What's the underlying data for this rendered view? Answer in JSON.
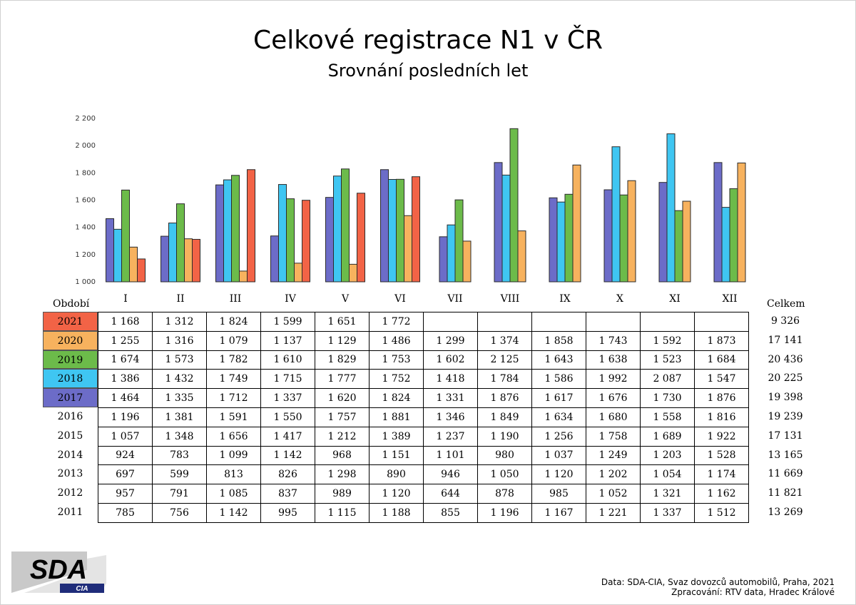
{
  "title": "Celkové registrace N1 v ČR",
  "subtitle": "Srovnání posledních let",
  "labels": {
    "period": "Období",
    "total": "Celkem"
  },
  "footer": {
    "line1": "Data: SDA-CIA, Svaz dovozců automobilů, Praha, 2021",
    "line2": "Zpracování: RTV data, Hradec Králové"
  },
  "logo": {
    "text": "SDA",
    "subtext": "CIA"
  },
  "chart_data": {
    "type": "bar",
    "categories": [
      "I",
      "II",
      "III",
      "IV",
      "V",
      "VI",
      "VII",
      "VIII",
      "IX",
      "X",
      "XI",
      "XII"
    ],
    "ylim": [
      1000,
      2200
    ],
    "yticks": [
      "1 000",
      "1 200",
      "1 400",
      "1 600",
      "1 800",
      "2 000",
      "2 200"
    ],
    "series": [
      {
        "name": "2017",
        "color": "#6c6cc8",
        "values": [
          1464,
          1335,
          1712,
          1337,
          1620,
          1824,
          1331,
          1876,
          1617,
          1676,
          1730,
          1876
        ]
      },
      {
        "name": "2018",
        "color": "#3fc6f2",
        "values": [
          1386,
          1432,
          1749,
          1715,
          1777,
          1752,
          1418,
          1784,
          1586,
          1992,
          2087,
          1547
        ]
      },
      {
        "name": "2019",
        "color": "#6cbb4a",
        "values": [
          1674,
          1573,
          1782,
          1610,
          1829,
          1753,
          1602,
          2125,
          1643,
          1638,
          1523,
          1684
        ]
      },
      {
        "name": "2020",
        "color": "#f7b25e",
        "values": [
          1255,
          1316,
          1079,
          1137,
          1129,
          1486,
          1299,
          1374,
          1858,
          1743,
          1592,
          1873
        ]
      },
      {
        "name": "2021",
        "color": "#f26346",
        "values": [
          1168,
          1312,
          1824,
          1599,
          1651,
          1772,
          null,
          null,
          null,
          null,
          null,
          null
        ]
      }
    ]
  },
  "table": {
    "rows": [
      {
        "year": "2021",
        "color": "#f26346",
        "values": [
          "1 168",
          "1 312",
          "1 824",
          "1 599",
          "1 651",
          "1 772",
          "",
          "",
          "",
          "",
          "",
          ""
        ],
        "total": "9 326"
      },
      {
        "year": "2020",
        "color": "#f7b25e",
        "values": [
          "1 255",
          "1 316",
          "1 079",
          "1 137",
          "1 129",
          "1 486",
          "1 299",
          "1 374",
          "1 858",
          "1 743",
          "1 592",
          "1 873"
        ],
        "total": "17 141"
      },
      {
        "year": "2019",
        "color": "#6cbb4a",
        "values": [
          "1 674",
          "1 573",
          "1 782",
          "1 610",
          "1 829",
          "1 753",
          "1 602",
          "2 125",
          "1 643",
          "1 638",
          "1 523",
          "1 684"
        ],
        "total": "20 436"
      },
      {
        "year": "2018",
        "color": "#3fc6f2",
        "values": [
          "1 386",
          "1 432",
          "1 749",
          "1 715",
          "1 777",
          "1 752",
          "1 418",
          "1 784",
          "1 586",
          "1 992",
          "2 087",
          "1 547"
        ],
        "total": "20 225"
      },
      {
        "year": "2017",
        "color": "#6c6cc8",
        "values": [
          "1 464",
          "1 335",
          "1 712",
          "1 337",
          "1 620",
          "1 824",
          "1 331",
          "1 876",
          "1 617",
          "1 676",
          "1 730",
          "1 876"
        ],
        "total": "19 398"
      },
      {
        "year": "2016",
        "color": "",
        "values": [
          "1 196",
          "1 381",
          "1 591",
          "1 550",
          "1 757",
          "1 881",
          "1 346",
          "1 849",
          "1 634",
          "1 680",
          "1 558",
          "1 816"
        ],
        "total": "19 239"
      },
      {
        "year": "2015",
        "color": "",
        "values": [
          "1 057",
          "1 348",
          "1 656",
          "1 417",
          "1 212",
          "1 389",
          "1 237",
          "1 190",
          "1 256",
          "1 758",
          "1 689",
          "1 922"
        ],
        "total": "17 131"
      },
      {
        "year": "2014",
        "color": "",
        "values": [
          "924",
          "783",
          "1 099",
          "1 142",
          "968",
          "1 151",
          "1 101",
          "980",
          "1 037",
          "1 249",
          "1 203",
          "1 528"
        ],
        "total": "13 165"
      },
      {
        "year": "2013",
        "color": "",
        "values": [
          "697",
          "599",
          "813",
          "826",
          "1 298",
          "890",
          "946",
          "1 050",
          "1 120",
          "1 202",
          "1 054",
          "1 174"
        ],
        "total": "11 669"
      },
      {
        "year": "2012",
        "color": "",
        "values": [
          "957",
          "791",
          "1 085",
          "837",
          "989",
          "1 120",
          "644",
          "878",
          "985",
          "1 052",
          "1 321",
          "1 162"
        ],
        "total": "11 821"
      },
      {
        "year": "2011",
        "color": "",
        "values": [
          "785",
          "756",
          "1 142",
          "995",
          "1 115",
          "1 188",
          "855",
          "1 196",
          "1 167",
          "1 221",
          "1 337",
          "1 512"
        ],
        "total": "13 269"
      }
    ]
  }
}
